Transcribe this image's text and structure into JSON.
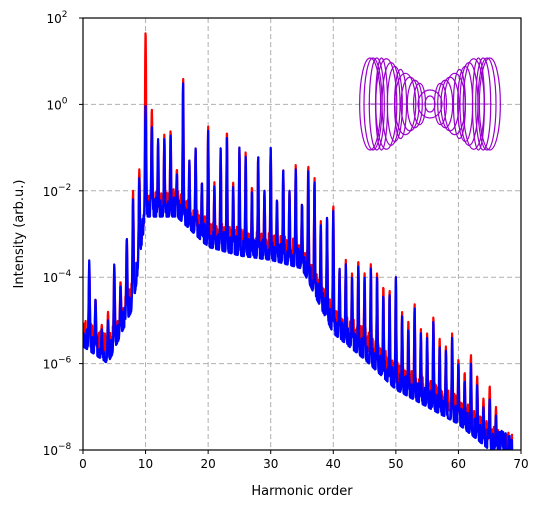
{
  "chart_data": {
    "type": "line",
    "xlabel": "Harmonic order",
    "ylabel": "Intensity (arb.u.)",
    "xlim": [
      0,
      70
    ],
    "ylim_exponent": [
      -8,
      2
    ],
    "y_scale": "log",
    "grid": true,
    "grid_style": "dashed",
    "x_ticks": [
      0,
      10,
      20,
      30,
      40,
      50,
      60,
      70
    ],
    "y_tick_exponents": [
      -8,
      -6,
      -4,
      -2,
      0,
      2
    ],
    "y_tick_base": "10",
    "series": [
      {
        "color": "#ff0000",
        "peaks": [
          [
            1,
            -3.7
          ],
          [
            2,
            -4.5
          ],
          [
            3,
            -5.1
          ],
          [
            4,
            -4.8
          ],
          [
            5,
            -3.8
          ],
          [
            6,
            -4.1
          ],
          [
            7,
            -3.1
          ],
          [
            8,
            -2.0
          ],
          [
            9,
            -1.5
          ],
          [
            10,
            1.7
          ],
          [
            11,
            -0.1
          ],
          [
            12,
            -0.9
          ],
          [
            13,
            -0.7
          ],
          [
            14,
            -0.6
          ],
          [
            15,
            -1.5
          ],
          [
            16,
            0.6
          ],
          [
            17,
            -1.3
          ],
          [
            18,
            -1.0
          ],
          [
            19,
            -1.8
          ],
          [
            20,
            -0.5
          ],
          [
            21,
            -1.8
          ],
          [
            22,
            -1.0
          ],
          [
            23,
            -0.6
          ],
          [
            24,
            -1.8
          ],
          [
            25,
            -1.0
          ],
          [
            26,
            -1.1
          ],
          [
            27,
            -1.9
          ],
          [
            28,
            -1.2
          ],
          [
            29,
            -2.0
          ],
          [
            30,
            -1.0
          ],
          [
            31,
            -2.2
          ],
          [
            32,
            -1.5
          ],
          [
            33,
            -2.0
          ],
          [
            34,
            -1.4
          ],
          [
            35,
            -2.3
          ],
          [
            36,
            -1.4
          ],
          [
            37,
            -1.7
          ],
          [
            38,
            -2.7
          ],
          [
            39,
            -2.6
          ],
          [
            40,
            -2.3
          ],
          [
            41,
            -3.8
          ],
          [
            42,
            -3.6
          ],
          [
            43,
            -3.9
          ],
          [
            44,
            -3.6
          ],
          [
            45,
            -3.9
          ],
          [
            46,
            -3.7
          ],
          [
            47,
            -3.9
          ],
          [
            48,
            -4.2
          ],
          [
            49,
            -4.3
          ],
          [
            50,
            -4.0
          ],
          [
            51,
            -4.8
          ],
          [
            52,
            -5.0
          ],
          [
            53,
            -4.6
          ],
          [
            54,
            -5.2
          ],
          [
            55,
            -5.3
          ],
          [
            56,
            -4.9
          ],
          [
            57,
            -5.4
          ],
          [
            58,
            -5.6
          ],
          [
            59,
            -5.3
          ],
          [
            60,
            -5.9
          ],
          [
            61,
            -6.2
          ],
          [
            62,
            -5.8
          ],
          [
            63,
            -6.3
          ],
          [
            64,
            -6.8
          ],
          [
            65,
            -6.5
          ],
          [
            66,
            -7.0
          ],
          [
            67,
            -7.6
          ],
          [
            68,
            -7.9
          ]
        ],
        "floor": [
          [
            0,
            -5.4
          ],
          [
            4,
            -5.8
          ],
          [
            8,
            -4.5
          ],
          [
            10,
            -2.5
          ],
          [
            15,
            -2.4
          ],
          [
            20,
            -3.1
          ],
          [
            25,
            -3.3
          ],
          [
            30,
            -3.4
          ],
          [
            35,
            -3.6
          ],
          [
            40,
            -5.1
          ],
          [
            45,
            -5.6
          ],
          [
            50,
            -6.4
          ],
          [
            55,
            -6.8
          ],
          [
            60,
            -7.2
          ],
          [
            65,
            -7.8
          ],
          [
            68,
            -8.0
          ]
        ]
      },
      {
        "color": "#0000ff",
        "peaks": [
          [
            1,
            -3.6
          ],
          [
            2,
            -4.5
          ],
          [
            3,
            -5.2
          ],
          [
            4,
            -5.0
          ],
          [
            5,
            -3.7
          ],
          [
            6,
            -4.2
          ],
          [
            7,
            -3.1
          ],
          [
            8,
            -2.2
          ],
          [
            9,
            -1.7
          ],
          [
            10,
            0.0
          ],
          [
            11,
            -0.5
          ],
          [
            12,
            -0.8
          ],
          [
            13,
            -0.8
          ],
          [
            14,
            -0.7
          ],
          [
            15,
            -1.6
          ],
          [
            16,
            0.5
          ],
          [
            17,
            -1.3
          ],
          [
            18,
            -1.0
          ],
          [
            19,
            -1.8
          ],
          [
            20,
            -0.6
          ],
          [
            21,
            -1.9
          ],
          [
            22,
            -1.0
          ],
          [
            23,
            -0.7
          ],
          [
            24,
            -1.9
          ],
          [
            25,
            -1.0
          ],
          [
            26,
            -1.2
          ],
          [
            27,
            -2.0
          ],
          [
            28,
            -1.2
          ],
          [
            29,
            -2.0
          ],
          [
            30,
            -1.0
          ],
          [
            31,
            -2.2
          ],
          [
            32,
            -1.5
          ],
          [
            33,
            -2.0
          ],
          [
            34,
            -1.5
          ],
          [
            35,
            -2.3
          ],
          [
            36,
            -1.5
          ],
          [
            37,
            -1.8
          ],
          [
            38,
            -2.8
          ],
          [
            39,
            -2.6
          ],
          [
            40,
            -2.4
          ],
          [
            41,
            -3.8
          ],
          [
            42,
            -3.7
          ],
          [
            43,
            -4.0
          ],
          [
            44,
            -3.7
          ],
          [
            45,
            -4.0
          ],
          [
            46,
            -3.8
          ],
          [
            47,
            -4.0
          ],
          [
            48,
            -4.4
          ],
          [
            49,
            -4.4
          ],
          [
            50,
            -4.0
          ],
          [
            51,
            -4.9
          ],
          [
            52,
            -5.2
          ],
          [
            53,
            -4.7
          ],
          [
            54,
            -5.3
          ],
          [
            55,
            -5.4
          ],
          [
            56,
            -5.0
          ],
          [
            57,
            -5.6
          ],
          [
            58,
            -5.7
          ],
          [
            59,
            -5.4
          ],
          [
            60,
            -6.0
          ],
          [
            61,
            -6.4
          ],
          [
            62,
            -6.0
          ],
          [
            63,
            -6.5
          ],
          [
            64,
            -7.0
          ],
          [
            65,
            -6.8
          ],
          [
            66,
            -7.2
          ],
          [
            67,
            -7.8
          ],
          [
            68,
            -7.9
          ]
        ],
        "floor": [
          [
            0,
            -5.6
          ],
          [
            4,
            -6.0
          ],
          [
            8,
            -4.7
          ],
          [
            10,
            -2.6
          ],
          [
            15,
            -2.6
          ],
          [
            20,
            -3.3
          ],
          [
            25,
            -3.5
          ],
          [
            30,
            -3.6
          ],
          [
            35,
            -3.8
          ],
          [
            40,
            -5.3
          ],
          [
            45,
            -5.9
          ],
          [
            50,
            -6.6
          ],
          [
            55,
            -7.0
          ],
          [
            60,
            -7.4
          ],
          [
            65,
            -8.0
          ],
          [
            68,
            -8.0
          ]
        ]
      }
    ],
    "inset": {
      "shape": "orbit-figure",
      "color": "#9900cc",
      "ellipse_semi_axes_units": [
        [
          6,
          11
        ],
        [
          10,
          16
        ],
        [
          14,
          21
        ],
        [
          19,
          26
        ],
        [
          24,
          31
        ],
        [
          28,
          37
        ],
        [
          33,
          41
        ],
        [
          38,
          46
        ],
        [
          43,
          51
        ],
        [
          48,
          56
        ],
        [
          52,
          60
        ],
        [
          56,
          63
        ]
      ]
    }
  }
}
